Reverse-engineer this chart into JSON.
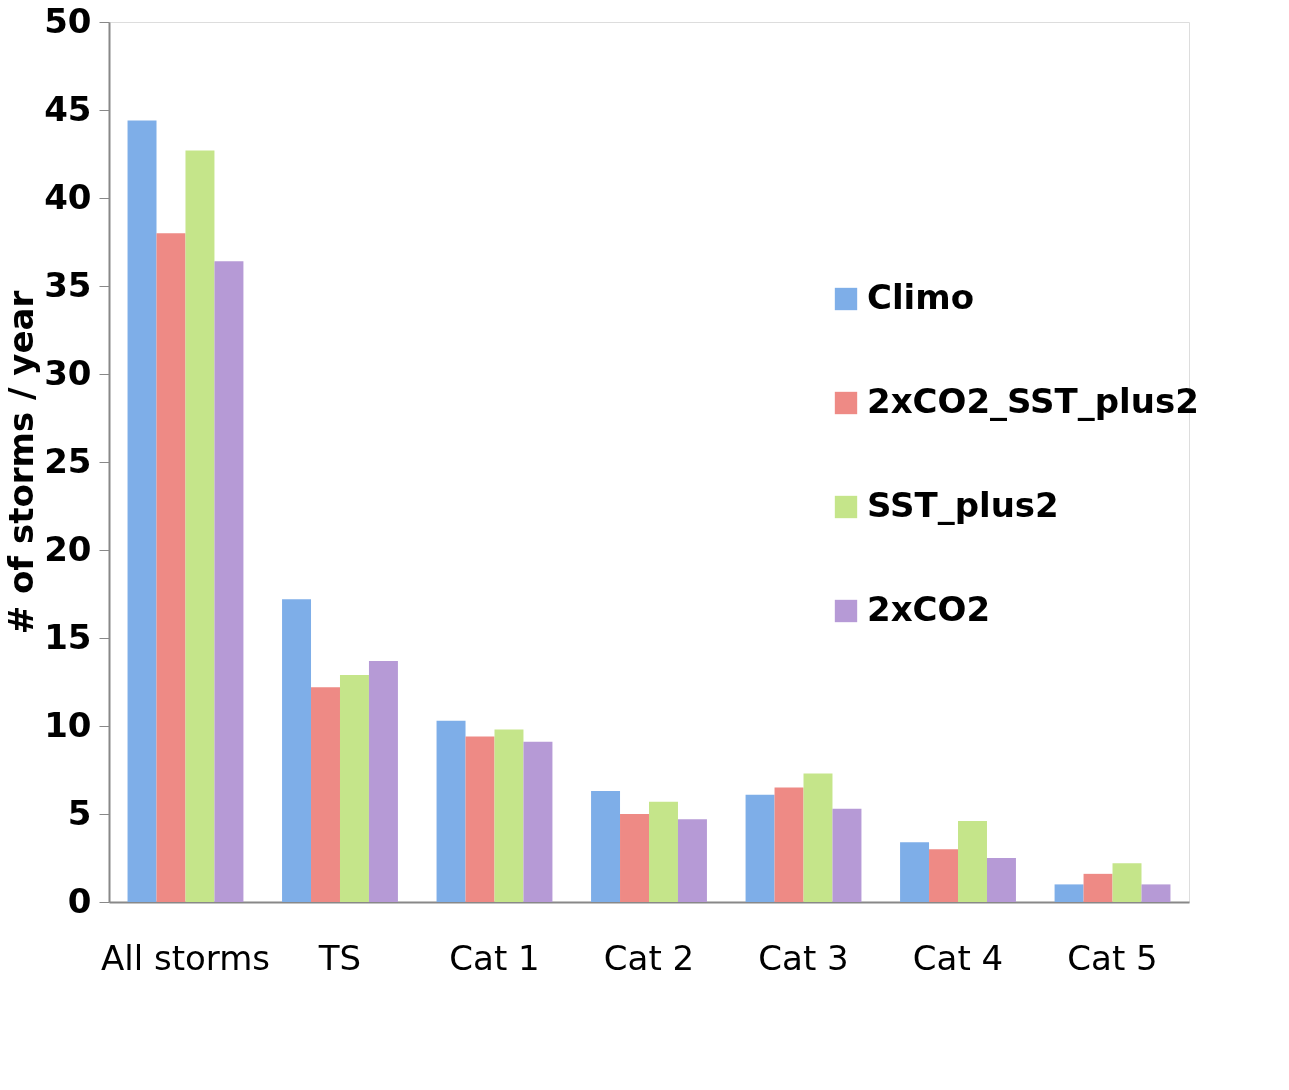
{
  "chart_data": {
    "type": "bar",
    "ylabel": "# of storms / year",
    "categories": [
      "All storms",
      "TS",
      "Cat 1",
      "Cat 2",
      "Cat 3",
      "Cat 4",
      "Cat 5"
    ],
    "series": [
      {
        "name": "Climo",
        "color": "#7eaee8",
        "values": [
          44.4,
          17.2,
          10.3,
          6.3,
          6.1,
          3.4,
          1.0
        ]
      },
      {
        "name": "2xCO2_SST_plus2",
        "color": "#ee8a85",
        "values": [
          38.0,
          12.2,
          9.4,
          5.0,
          6.5,
          3.0,
          1.6
        ]
      },
      {
        "name": "SST_plus2",
        "color": "#c5e58a",
        "values": [
          42.7,
          12.9,
          9.8,
          5.7,
          7.3,
          4.6,
          2.2
        ]
      },
      {
        "name": "2xCO2",
        "color": "#b69ad6",
        "values": [
          36.4,
          13.7,
          9.1,
          4.7,
          5.3,
          2.5,
          1.0
        ]
      }
    ],
    "ylim": [
      0,
      50
    ],
    "yticks": [
      0,
      5,
      10,
      15,
      20,
      25,
      30,
      35,
      40,
      45,
      50
    ],
    "grid": false,
    "legend": "right"
  }
}
